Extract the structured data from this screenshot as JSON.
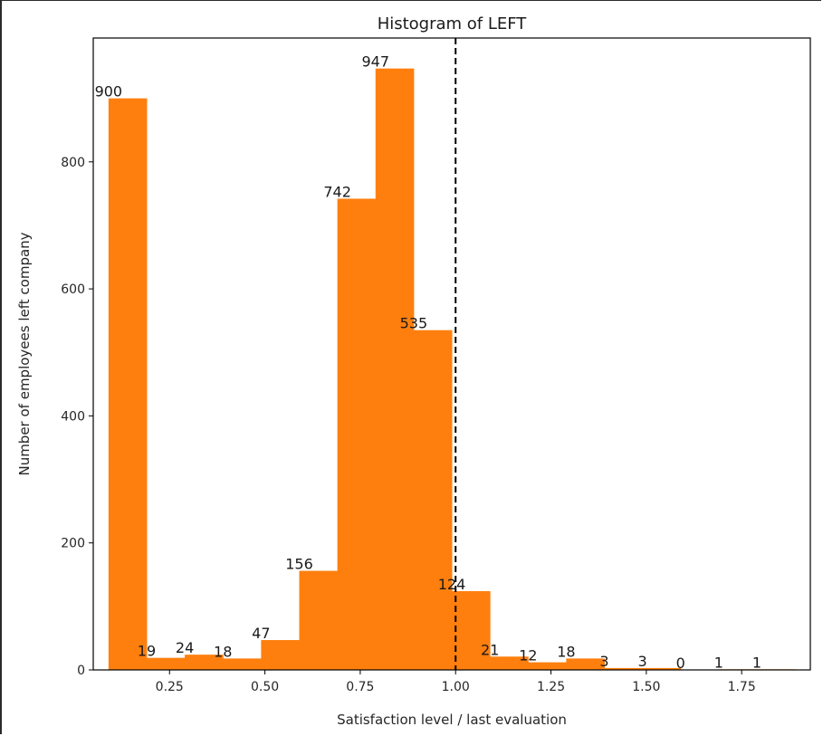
{
  "chart_data": {
    "type": "bar",
    "title": "Histogram of LEFT",
    "xlabel": "Satisfaction level / last evaluation",
    "ylabel": "Number of employees left company",
    "bar_color": "#ff7f0e",
    "bins": [
      {
        "x0": 0.09,
        "x1": 0.19,
        "value": 900,
        "label": "900"
      },
      {
        "x0": 0.19,
        "x1": 0.29,
        "value": 19,
        "label": "19"
      },
      {
        "x0": 0.29,
        "x1": 0.39,
        "value": 24,
        "label": "24"
      },
      {
        "x0": 0.39,
        "x1": 0.49,
        "value": 18,
        "label": "18"
      },
      {
        "x0": 0.49,
        "x1": 0.59,
        "value": 47,
        "label": "47"
      },
      {
        "x0": 0.59,
        "x1": 0.69,
        "value": 156,
        "label": "156"
      },
      {
        "x0": 0.69,
        "x1": 0.79,
        "value": 742,
        "label": "742"
      },
      {
        "x0": 0.79,
        "x1": 0.89,
        "value": 947,
        "label": "947"
      },
      {
        "x0": 0.89,
        "x1": 0.99,
        "value": 535,
        "label": "535"
      },
      {
        "x0": 0.99,
        "x1": 1.09,
        "value": 124,
        "label": "124"
      },
      {
        "x0": 1.09,
        "x1": 1.19,
        "value": 21,
        "label": "21"
      },
      {
        "x0": 1.19,
        "x1": 1.29,
        "value": 12,
        "label": "12"
      },
      {
        "x0": 1.29,
        "x1": 1.39,
        "value": 18,
        "label": "18"
      },
      {
        "x0": 1.39,
        "x1": 1.49,
        "value": 3,
        "label": "3"
      },
      {
        "x0": 1.49,
        "x1": 1.59,
        "value": 3,
        "label": "3"
      },
      {
        "x0": 1.59,
        "x1": 1.69,
        "value": 0,
        "label": "0"
      },
      {
        "x0": 1.69,
        "x1": 1.79,
        "value": 1,
        "label": "1"
      },
      {
        "x0": 1.79,
        "x1": 1.89,
        "value": 1,
        "label": "1"
      }
    ],
    "xlim": [
      0.05,
      1.93
    ],
    "ylim": [
      0,
      995
    ],
    "xticks": [
      {
        "value": 0.25,
        "label": "0.25"
      },
      {
        "value": 0.5,
        "label": "0.50"
      },
      {
        "value": 0.75,
        "label": "0.75"
      },
      {
        "value": 1.0,
        "label": "1.00"
      },
      {
        "value": 1.25,
        "label": "1.25"
      },
      {
        "value": 1.5,
        "label": "1.50"
      },
      {
        "value": 1.75,
        "label": "1.75"
      }
    ],
    "yticks": [
      {
        "value": 0,
        "label": "0"
      },
      {
        "value": 200,
        "label": "200"
      },
      {
        "value": 400,
        "label": "400"
      },
      {
        "value": 600,
        "label": "600"
      },
      {
        "value": 800,
        "label": "800"
      }
    ],
    "reference_line": {
      "x": 1.0,
      "style": "dashed",
      "color": "#000000"
    },
    "grid": false,
    "legend": "none"
  }
}
